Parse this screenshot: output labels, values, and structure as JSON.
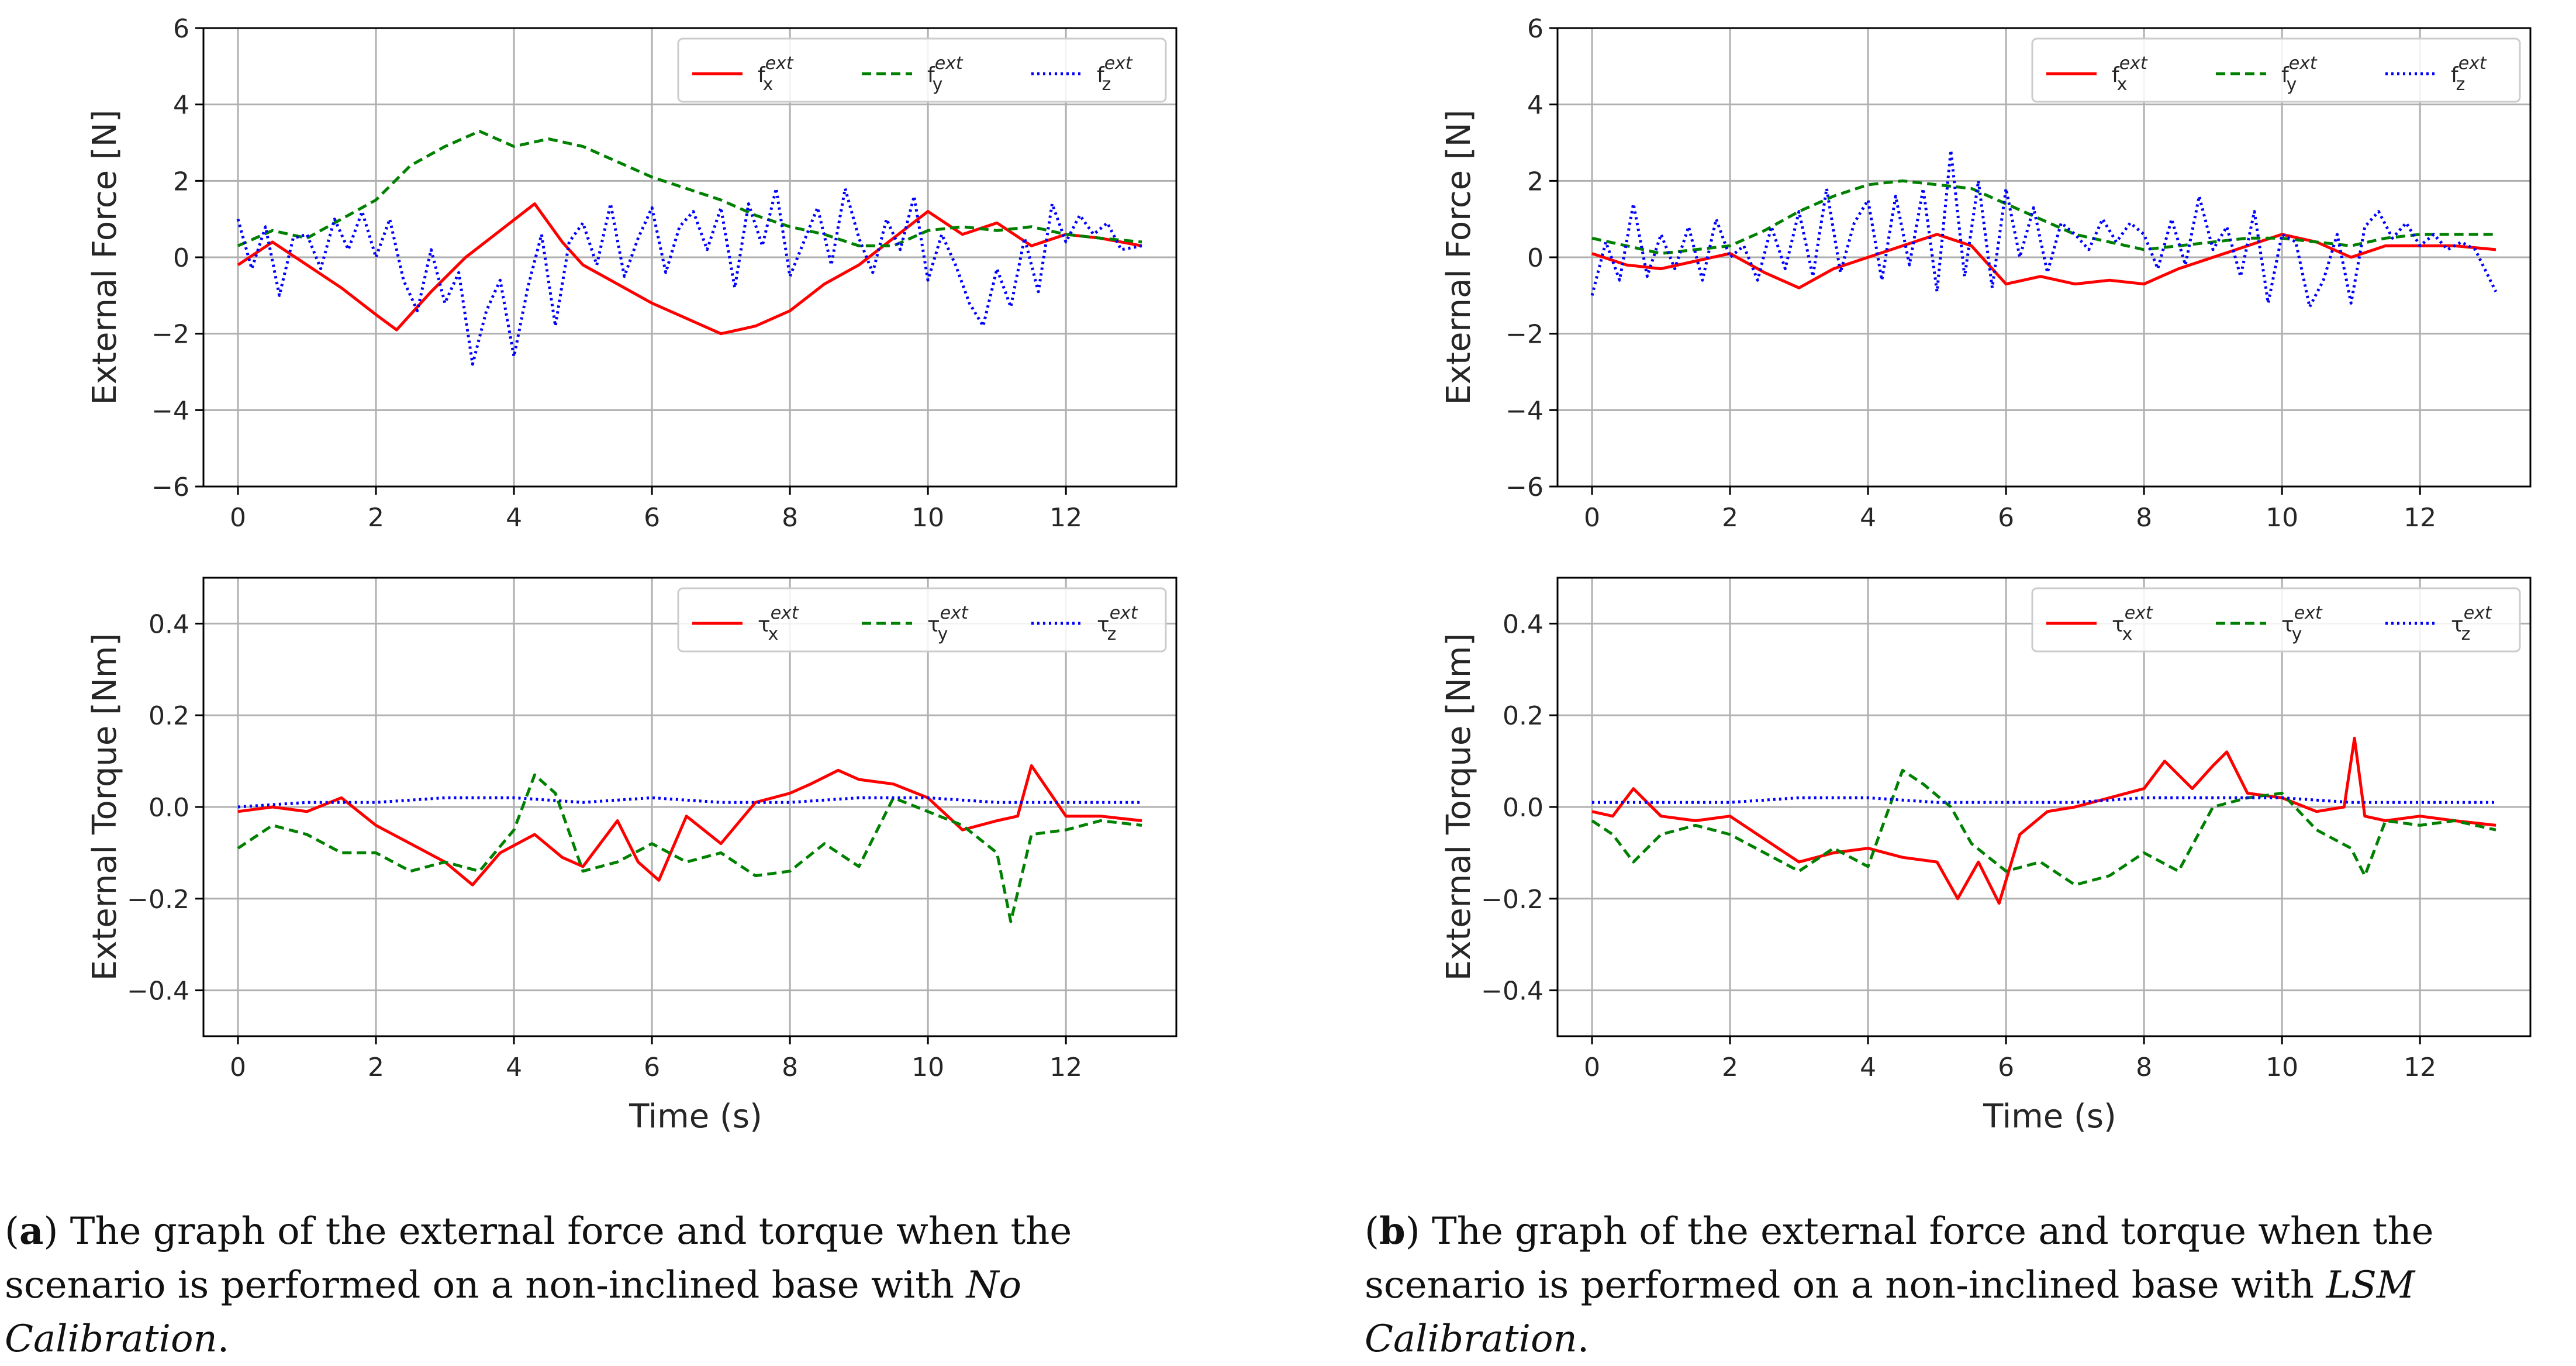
{
  "colors": {
    "fx": "#ff0000",
    "fy": "#008000",
    "fz": "#0000ff",
    "grid": "#b0b0b0",
    "axis": "#000000"
  },
  "chart_data": [
    {
      "id": "a-force",
      "type": "line",
      "ylabel": "External Force [N]",
      "xlabel": "",
      "xlim": [
        -0.5,
        13.6
      ],
      "ylim": [
        -6,
        6
      ],
      "xticks": [
        0,
        2,
        4,
        6,
        8,
        10,
        12
      ],
      "yticks": [
        -6,
        -4,
        -2,
        0,
        2,
        4,
        6
      ],
      "ytick_labels": [
        "−6",
        "−4",
        "−2",
        "0",
        "2",
        "4",
        "6"
      ],
      "legend_placement": "top-right",
      "series": [
        {
          "name": "fx",
          "label": "f",
          "sub": "x",
          "sup": "ext",
          "color": "fx",
          "dash": "solid",
          "x": [
            0,
            0.5,
            1,
            1.5,
            2,
            2.3,
            2.8,
            3.3,
            3.8,
            4.3,
            4.7,
            5,
            5.5,
            6,
            6.5,
            7,
            7.5,
            8,
            8.5,
            9,
            9.5,
            10,
            10.5,
            11,
            11.5,
            12,
            12.5,
            13.1
          ],
          "y": [
            -0.2,
            0.4,
            -0.2,
            -0.8,
            -1.5,
            -1.9,
            -0.9,
            0.0,
            0.7,
            1.4,
            0.4,
            -0.2,
            -0.7,
            -1.2,
            -1.6,
            -2.0,
            -1.8,
            -1.4,
            -0.7,
            -0.2,
            0.5,
            1.2,
            0.6,
            0.9,
            0.3,
            0.6,
            0.5,
            0.3
          ]
        },
        {
          "name": "fy",
          "label": "f",
          "sub": "y",
          "sup": "ext",
          "color": "fy",
          "dash": "dashed",
          "x": [
            0,
            0.5,
            1,
            1.5,
            2,
            2.5,
            3,
            3.5,
            4,
            4.5,
            5,
            5.5,
            6,
            6.5,
            7,
            7.5,
            8,
            8.5,
            9,
            9.5,
            10,
            10.5,
            11,
            11.5,
            12,
            12.5,
            13.1
          ],
          "y": [
            0.3,
            0.7,
            0.5,
            1.0,
            1.5,
            2.4,
            2.9,
            3.3,
            2.9,
            3.1,
            2.9,
            2.5,
            2.1,
            1.8,
            1.5,
            1.1,
            0.8,
            0.6,
            0.3,
            0.3,
            0.7,
            0.8,
            0.7,
            0.8,
            0.6,
            0.5,
            0.4
          ]
        },
        {
          "name": "fz",
          "label": "f",
          "sub": "z",
          "sup": "ext",
          "color": "fz",
          "dash": "dotted",
          "x": [
            0,
            0.2,
            0.4,
            0.6,
            0.8,
            1,
            1.2,
            1.4,
            1.6,
            1.8,
            2,
            2.2,
            2.4,
            2.6,
            2.8,
            3,
            3.2,
            3.4,
            3.6,
            3.8,
            4,
            4.2,
            4.4,
            4.6,
            4.8,
            5,
            5.2,
            5.4,
            5.6,
            5.8,
            6,
            6.2,
            6.4,
            6.6,
            6.8,
            7,
            7.2,
            7.4,
            7.6,
            7.8,
            8,
            8.2,
            8.4,
            8.6,
            8.8,
            9,
            9.2,
            9.4,
            9.6,
            9.8,
            10,
            10.2,
            10.4,
            10.6,
            10.8,
            11,
            11.2,
            11.4,
            11.6,
            11.8,
            12,
            12.2,
            12.4,
            12.6,
            12.8,
            13.1
          ],
          "y": [
            1.0,
            -0.3,
            0.8,
            -1.0,
            0.5,
            0.6,
            -0.3,
            1.0,
            0.2,
            1.2,
            0.0,
            1.0,
            -0.6,
            -1.4,
            0.2,
            -1.2,
            -0.4,
            -2.8,
            -1.4,
            -0.6,
            -2.6,
            -0.8,
            0.6,
            -1.8,
            0.4,
            0.9,
            -0.2,
            1.4,
            -0.5,
            0.5,
            1.3,
            -0.4,
            0.8,
            1.2,
            0.2,
            1.3,
            -0.8,
            1.4,
            0.3,
            1.8,
            -0.5,
            0.4,
            1.3,
            -0.2,
            1.8,
            0.5,
            -0.4,
            1.0,
            0.2,
            1.6,
            -0.6,
            0.6,
            -0.2,
            -1.2,
            -1.8,
            -0.3,
            -1.3,
            0.5,
            -0.9,
            1.4,
            0.4,
            1.1,
            0.6,
            0.9,
            0.2,
            0.3
          ]
        }
      ]
    },
    {
      "id": "a-torque",
      "type": "line",
      "ylabel": "External Torque [Nm]",
      "xlabel": "Time (s)",
      "xlim": [
        -0.5,
        13.6
      ],
      "ylim": [
        -0.5,
        0.5
      ],
      "xticks": [
        0,
        2,
        4,
        6,
        8,
        10,
        12
      ],
      "yticks": [
        -0.4,
        -0.2,
        0.0,
        0.2,
        0.4
      ],
      "ytick_labels": [
        "−0.4",
        "−0.2",
        "0.0",
        "0.2",
        "0.4"
      ],
      "xtick_labels": [
        "0",
        "2",
        "4",
        "6",
        "8",
        "10",
        "12"
      ],
      "legend_placement": "top-right",
      "series": [
        {
          "name": "tx",
          "label": "τ",
          "sub": "x",
          "sup": "ext",
          "color": "fx",
          "dash": "solid",
          "x": [
            0,
            0.5,
            1,
            1.5,
            2,
            2.5,
            3,
            3.4,
            3.8,
            4.3,
            4.7,
            5,
            5.5,
            5.8,
            6.1,
            6.5,
            7,
            7.5,
            8,
            8.3,
            8.7,
            9,
            9.5,
            10,
            10.5,
            11,
            11.3,
            11.5,
            12,
            12.5,
            13.1
          ],
          "y": [
            -0.01,
            0.0,
            -0.01,
            0.02,
            -0.04,
            -0.08,
            -0.12,
            -0.17,
            -0.1,
            -0.06,
            -0.11,
            -0.13,
            -0.03,
            -0.12,
            -0.16,
            -0.02,
            -0.08,
            0.01,
            0.03,
            0.05,
            0.08,
            0.06,
            0.05,
            0.02,
            -0.05,
            -0.03,
            -0.02,
            0.09,
            -0.02,
            -0.02,
            -0.03
          ]
        },
        {
          "name": "ty",
          "label": "τ",
          "sub": "y",
          "sup": "ext",
          "color": "fy",
          "dash": "dashed",
          "x": [
            0,
            0.5,
            1,
            1.5,
            2,
            2.5,
            3,
            3.5,
            4,
            4.3,
            4.6,
            5,
            5.5,
            6,
            6.5,
            7,
            7.5,
            8,
            8.5,
            9,
            9.5,
            10,
            10.5,
            11,
            11.2,
            11.5,
            12,
            12.5,
            13.1
          ],
          "y": [
            -0.09,
            -0.04,
            -0.06,
            -0.1,
            -0.1,
            -0.14,
            -0.12,
            -0.14,
            -0.05,
            0.07,
            0.03,
            -0.14,
            -0.12,
            -0.08,
            -0.12,
            -0.1,
            -0.15,
            -0.14,
            -0.08,
            -0.13,
            0.02,
            -0.01,
            -0.04,
            -0.1,
            -0.25,
            -0.06,
            -0.05,
            -0.03,
            -0.04
          ]
        },
        {
          "name": "tz",
          "label": "τ",
          "sub": "z",
          "sup": "ext",
          "color": "fz",
          "dash": "dotted",
          "x": [
            0,
            1,
            2,
            3,
            4,
            5,
            6,
            7,
            8,
            9,
            10,
            11,
            12,
            13.1
          ],
          "y": [
            0.0,
            0.01,
            0.01,
            0.02,
            0.02,
            0.01,
            0.02,
            0.01,
            0.01,
            0.02,
            0.02,
            0.01,
            0.01,
            0.01
          ]
        }
      ]
    },
    {
      "id": "b-force",
      "type": "line",
      "ylabel": "External Force [N]",
      "xlabel": "",
      "xlim": [
        -0.5,
        13.6
      ],
      "ylim": [
        -6,
        6
      ],
      "xticks": [
        0,
        2,
        4,
        6,
        8,
        10,
        12
      ],
      "yticks": [
        -6,
        -4,
        -2,
        0,
        2,
        4,
        6
      ],
      "ytick_labels": [
        "−6",
        "−4",
        "−2",
        "0",
        "2",
        "4",
        "6"
      ],
      "legend_placement": "top-right",
      "series": [
        {
          "name": "fx",
          "label": "f",
          "sub": "x",
          "sup": "ext",
          "color": "fx",
          "dash": "solid",
          "x": [
            0,
            0.5,
            1,
            1.5,
            2,
            2.5,
            3,
            3.5,
            4,
            4.5,
            5,
            5.5,
            6,
            6.5,
            7,
            7.5,
            8,
            8.5,
            9,
            9.5,
            10,
            10.5,
            11,
            11.5,
            12,
            12.5,
            13.1
          ],
          "y": [
            0.1,
            -0.2,
            -0.3,
            -0.1,
            0.1,
            -0.4,
            -0.8,
            -0.3,
            0.0,
            0.3,
            0.6,
            0.3,
            -0.7,
            -0.5,
            -0.7,
            -0.6,
            -0.7,
            -0.3,
            0.0,
            0.3,
            0.6,
            0.4,
            0.0,
            0.3,
            0.3,
            0.3,
            0.2
          ]
        },
        {
          "name": "fy",
          "label": "f",
          "sub": "y",
          "sup": "ext",
          "color": "fy",
          "dash": "dashed",
          "x": [
            0,
            0.5,
            1,
            1.5,
            2,
            2.5,
            3,
            3.5,
            4,
            4.5,
            5,
            5.5,
            6,
            6.5,
            7,
            7.5,
            8,
            8.5,
            9,
            9.5,
            10,
            10.5,
            11,
            11.5,
            12,
            12.5,
            13.1
          ],
          "y": [
            0.5,
            0.3,
            0.1,
            0.2,
            0.3,
            0.7,
            1.2,
            1.6,
            1.9,
            2.0,
            1.9,
            1.8,
            1.4,
            1.0,
            0.6,
            0.4,
            0.2,
            0.3,
            0.4,
            0.5,
            0.5,
            0.4,
            0.3,
            0.5,
            0.6,
            0.6,
            0.6
          ]
        },
        {
          "name": "fz",
          "label": "f",
          "sub": "z",
          "sup": "ext",
          "color": "fz",
          "dash": "dotted",
          "x": [
            0,
            0.2,
            0.4,
            0.6,
            0.8,
            1,
            1.2,
            1.4,
            1.6,
            1.8,
            2,
            2.2,
            2.4,
            2.6,
            2.8,
            3,
            3.2,
            3.4,
            3.6,
            3.8,
            4,
            4.2,
            4.4,
            4.6,
            4.8,
            5,
            5.2,
            5.4,
            5.6,
            5.8,
            6,
            6.2,
            6.4,
            6.6,
            6.8,
            7,
            7.2,
            7.4,
            7.6,
            7.8,
            8,
            8.2,
            8.4,
            8.6,
            8.8,
            9,
            9.2,
            9.4,
            9.6,
            9.8,
            10,
            10.2,
            10.4,
            10.6,
            10.8,
            11,
            11.2,
            11.4,
            11.6,
            11.8,
            12,
            12.2,
            12.4,
            12.6,
            12.8,
            13.1
          ],
          "y": [
            -1.0,
            0.4,
            -0.6,
            1.4,
            -0.5,
            0.6,
            -0.3,
            0.8,
            -0.6,
            1.0,
            0.0,
            0.3,
            -0.6,
            0.8,
            -0.3,
            1.2,
            -0.5,
            1.8,
            -0.4,
            0.9,
            1.5,
            -0.6,
            1.6,
            -0.2,
            1.8,
            -0.9,
            2.8,
            -0.5,
            2.0,
            -0.8,
            1.8,
            0.0,
            1.3,
            -0.4,
            0.9,
            0.6,
            0.2,
            1.0,
            0.4,
            0.9,
            0.6,
            -0.3,
            1.0,
            -0.2,
            1.6,
            0.2,
            0.8,
            -0.5,
            1.2,
            -1.2,
            0.6,
            0.4,
            -1.3,
            -0.6,
            0.6,
            -1.2,
            0.8,
            1.2,
            0.5,
            0.9,
            0.3,
            0.6,
            0.2,
            0.4,
            0.2,
            -0.9
          ]
        }
      ]
    },
    {
      "id": "b-torque",
      "type": "line",
      "ylabel": "External Torque [Nm]",
      "xlabel": "Time (s)",
      "xlim": [
        -0.5,
        13.6
      ],
      "ylim": [
        -0.5,
        0.5
      ],
      "xticks": [
        0,
        2,
        4,
        6,
        8,
        10,
        12
      ],
      "yticks": [
        -0.4,
        -0.2,
        0.0,
        0.2,
        0.4
      ],
      "ytick_labels": [
        "−0.4",
        "−0.2",
        "0.0",
        "0.2",
        "0.4"
      ],
      "xtick_labels": [
        "0",
        "2",
        "4",
        "6",
        "8",
        "10",
        "12"
      ],
      "legend_placement": "top-right",
      "series": [
        {
          "name": "tx",
          "label": "τ",
          "sub": "x",
          "sup": "ext",
          "color": "fx",
          "dash": "solid",
          "x": [
            0,
            0.3,
            0.6,
            1,
            1.5,
            2,
            2.5,
            3,
            3.5,
            4,
            4.5,
            5,
            5.3,
            5.6,
            5.9,
            6.2,
            6.6,
            7,
            7.5,
            8,
            8.3,
            8.7,
            9,
            9.2,
            9.5,
            10,
            10.5,
            10.9,
            11.05,
            11.2,
            11.5,
            12,
            12.5,
            13.1
          ],
          "y": [
            -0.01,
            -0.02,
            0.04,
            -0.02,
            -0.03,
            -0.02,
            -0.07,
            -0.12,
            -0.1,
            -0.09,
            -0.11,
            -0.12,
            -0.2,
            -0.12,
            -0.21,
            -0.06,
            -0.01,
            0.0,
            0.02,
            0.04,
            0.1,
            0.04,
            0.09,
            0.12,
            0.03,
            0.02,
            -0.01,
            0.0,
            0.15,
            -0.02,
            -0.03,
            -0.02,
            -0.03,
            -0.04
          ]
        },
        {
          "name": "ty",
          "label": "τ",
          "sub": "y",
          "sup": "ext",
          "color": "fy",
          "dash": "dashed",
          "x": [
            0,
            0.3,
            0.6,
            1,
            1.5,
            2,
            2.5,
            3,
            3.5,
            4,
            4.5,
            4.8,
            5.2,
            5.5,
            6,
            6.5,
            7,
            7.5,
            8,
            8.5,
            9,
            9.5,
            10,
            10.5,
            11,
            11.2,
            11.5,
            12,
            12.5,
            13.1
          ],
          "y": [
            -0.03,
            -0.06,
            -0.12,
            -0.06,
            -0.04,
            -0.06,
            -0.1,
            -0.14,
            -0.09,
            -0.13,
            0.08,
            0.05,
            0.0,
            -0.08,
            -0.14,
            -0.12,
            -0.17,
            -0.15,
            -0.1,
            -0.14,
            0.0,
            0.02,
            0.03,
            -0.05,
            -0.09,
            -0.15,
            -0.03,
            -0.04,
            -0.03,
            -0.05
          ]
        },
        {
          "name": "tz",
          "label": "τ",
          "sub": "z",
          "sup": "ext",
          "color": "fz",
          "dash": "dotted",
          "x": [
            0,
            1,
            2,
            3,
            4,
            5,
            6,
            7,
            8,
            9,
            10,
            11,
            12,
            13.1
          ],
          "y": [
            0.01,
            0.01,
            0.01,
            0.02,
            0.02,
            0.01,
            0.01,
            0.01,
            0.02,
            0.02,
            0.02,
            0.01,
            0.01,
            0.01
          ]
        }
      ]
    }
  ],
  "captions": {
    "a": {
      "letter": "a",
      "text": ") The graph of the external force and torque when the scenario is performed on a non-inclined base with ",
      "emph": "No Calibration",
      "end": "."
    },
    "b": {
      "letter": "b",
      "text": ") The graph of the external force and torque when the scenario is performed on a non-inclined base with ",
      "emph": "LSM Calibration",
      "end": "."
    }
  }
}
